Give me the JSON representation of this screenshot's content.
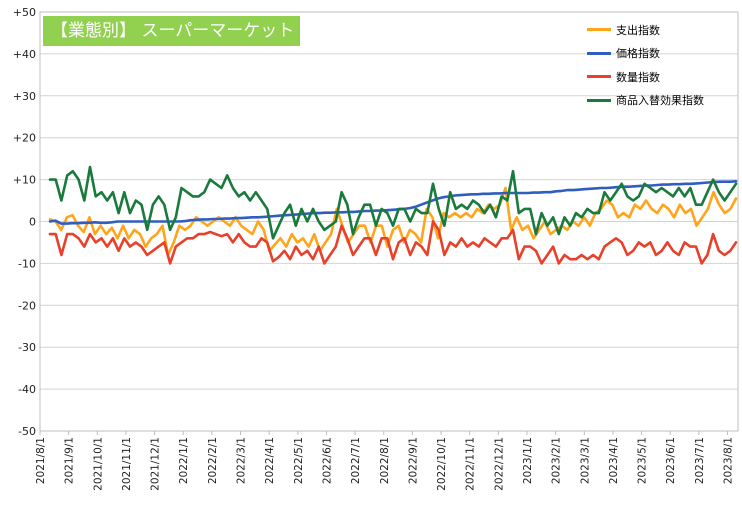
{
  "chart_data": {
    "type": "line",
    "title": "【業態別】 スーパーマーケット",
    "xlabel": "",
    "ylabel": "",
    "ylim": [
      -50,
      50
    ],
    "y_ticks": [
      "+50",
      "+40",
      "+30",
      "+20",
      "+10",
      "0",
      "-10",
      "-20",
      "-30",
      "-40",
      "-50"
    ],
    "x_ticks": [
      "2021/8/1",
      "2021/9/1",
      "2021/10/1",
      "2021/11/1",
      "2021/12/1",
      "2022/1/1",
      "2022/2/1",
      "2022/3/1",
      "2022/4/1",
      "2022/5/1",
      "2022/6/1",
      "2022/7/1",
      "2022/8/1",
      "2022/9/1",
      "2022/10/1",
      "2022/11/1",
      "2022/12/1",
      "2023/1/1",
      "2023/2/1",
      "2023/3/1",
      "2023/4/1",
      "2023/5/1",
      "2023/6/1",
      "2023/7/1",
      "2023/8/1"
    ],
    "grid": true,
    "legend_position": "top-right",
    "series": [
      {
        "name": "支出指数",
        "color": "#FFA41B",
        "values": [
          0.5,
          0,
          -2,
          1,
          1.5,
          -1,
          -2.5,
          1,
          -3,
          -1,
          -3,
          -1.5,
          -4,
          -1,
          -4,
          -2,
          -3,
          -6,
          -4,
          -3,
          -1,
          -8,
          -5,
          -1,
          -2,
          -1,
          1,
          0,
          -1,
          0,
          1,
          0,
          -1,
          1,
          -1,
          -2,
          -3,
          0,
          -2,
          -7,
          -5.5,
          -4,
          -6,
          -3,
          -5,
          -4,
          -6,
          -3,
          -7,
          -5,
          -3,
          3,
          -1,
          -5,
          -3,
          -1,
          -1,
          -5,
          -1,
          -1,
          -6,
          -2,
          -1,
          -5,
          -2,
          -3,
          -5,
          3,
          1,
          -4,
          2,
          1,
          2,
          1,
          2,
          1,
          3,
          2,
          4,
          3,
          4,
          8,
          -2,
          1,
          -2,
          -1,
          -4,
          -2,
          0,
          -3,
          -2,
          -1,
          -2,
          0,
          -1,
          1,
          -1,
          2,
          3,
          5,
          4,
          1,
          2,
          1,
          4,
          3,
          5,
          3,
          2,
          4,
          3,
          1,
          4,
          2,
          3,
          -1,
          1,
          3,
          7,
          4,
          2,
          3,
          5.5
        ]
      },
      {
        "name": "価格指数",
        "color": "#2F5EC0",
        "values": [
          0,
          0.2,
          -0.5,
          -0.5,
          -0.4,
          -0.4,
          -0.3,
          -0.3,
          -0.2,
          -0.3,
          -0.3,
          -0.2,
          0,
          0,
          0,
          0,
          0,
          0,
          0,
          0,
          0,
          0,
          0,
          0,
          0.1,
          0.3,
          0.4,
          0.5,
          0.5,
          0.6,
          0.6,
          0.7,
          0.7,
          0.8,
          0.8,
          0.9,
          1,
          1,
          1.1,
          1.2,
          1.3,
          1.4,
          1.5,
          1.6,
          1.7,
          1.8,
          1.9,
          2,
          2,
          2.1,
          2.1,
          2.2,
          2.2,
          2.3,
          2.3,
          2.4,
          2.5,
          2.5,
          2.6,
          2.6,
          2.7,
          2.8,
          2.9,
          3,
          3.2,
          3.5,
          4,
          4.5,
          5,
          5.5,
          5.8,
          6,
          6.2,
          6.3,
          6.4,
          6.5,
          6.5,
          6.6,
          6.6,
          6.7,
          6.7,
          6.8,
          6.8,
          6.8,
          6.8,
          6.8,
          6.9,
          6.9,
          7,
          7,
          7.2,
          7.3,
          7.5,
          7.5,
          7.6,
          7.7,
          7.8,
          7.9,
          8,
          8,
          8.1,
          8.2,
          8.3,
          8.3,
          8.4,
          8.5,
          8.6,
          8.6,
          8.7,
          8.8,
          8.8,
          8.9,
          8.9,
          9,
          9,
          9.1,
          9.2,
          9.3,
          9.4,
          9.5,
          9.5,
          9.5,
          9.6
        ]
      },
      {
        "name": "数量指数",
        "color": "#E8412B",
        "values": [
          -3,
          -3,
          -8,
          -3,
          -3,
          -4,
          -6,
          -3,
          -5,
          -4,
          -6,
          -4,
          -7,
          -4,
          -6,
          -5,
          -6,
          -8,
          -7,
          -6,
          -5,
          -10,
          -6,
          -5,
          -4,
          -4,
          -3,
          -3,
          -2.5,
          -3,
          -3.5,
          -3,
          -5,
          -3,
          -5,
          -6,
          -6,
          -4,
          -5,
          -9.5,
          -8.5,
          -7,
          -9,
          -6,
          -8,
          -7,
          -9,
          -6,
          -10,
          -8,
          -6,
          -1,
          -4,
          -8,
          -6,
          -4,
          -4,
          -8,
          -4,
          -4,
          -9,
          -5,
          -4,
          -8,
          -5,
          -6,
          -8,
          0,
          -2,
          -8,
          -5,
          -6,
          -4,
          -6,
          -5,
          -6,
          -4,
          -5,
          -6,
          -4,
          -4,
          -2,
          -9,
          -6,
          -6,
          -7,
          -10,
          -8,
          -6,
          -10,
          -8,
          -9,
          -9,
          -8,
          -9,
          -8,
          -9,
          -6,
          -5,
          -4,
          -5,
          -8,
          -7,
          -5,
          -6,
          -5,
          -8,
          -7,
          -5,
          -7,
          -8,
          -5,
          -6,
          -6,
          -10,
          -8,
          -3,
          -7,
          -8,
          -7,
          -5
        ]
      },
      {
        "name": "商品入替効果指数",
        "color": "#1A7A3C",
        "values": [
          10,
          10,
          5,
          11,
          12,
          10,
          5,
          13,
          6,
          7,
          5,
          7,
          2,
          7,
          2,
          5,
          4,
          -2,
          4,
          6,
          4,
          -2,
          1,
          8,
          7,
          6,
          6,
          7,
          10,
          9,
          8,
          11,
          8,
          6,
          7,
          5,
          7,
          5,
          3,
          -4,
          -1,
          2,
          4,
          -1,
          3,
          0,
          3,
          0,
          -2,
          -1,
          0,
          7,
          4,
          -3,
          1,
          4,
          4,
          -1,
          3,
          2,
          -1,
          3,
          3,
          0,
          3,
          2,
          2,
          9,
          3,
          -1,
          7,
          3,
          4,
          3,
          5,
          4,
          2,
          4,
          1,
          6,
          5,
          12,
          2,
          3,
          3,
          -3,
          2,
          -1,
          1,
          -3,
          1,
          -1,
          2,
          1,
          3,
          2,
          2,
          7,
          5,
          7,
          9,
          6,
          5,
          6,
          9,
          8,
          7,
          8,
          7,
          6,
          8,
          6,
          8,
          4,
          4,
          7,
          10,
          7,
          5,
          7,
          9
        ]
      }
    ]
  }
}
